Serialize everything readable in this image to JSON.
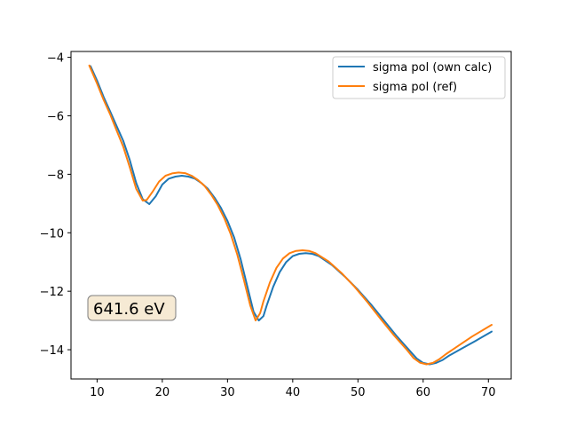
{
  "chart_data": {
    "type": "line",
    "title": "",
    "xlabel": "",
    "ylabel": "",
    "xlim": [
      6,
      73.5
    ],
    "ylim": [
      -15,
      -3.8
    ],
    "xticks": [
      10,
      20,
      30,
      40,
      50,
      60,
      70
    ],
    "yticks": [
      -14,
      -12,
      -10,
      -8,
      -6,
      -4
    ],
    "xtick_labels": [
      "10",
      "20",
      "30",
      "40",
      "50",
      "60",
      "70"
    ],
    "ytick_labels": [
      "−14",
      "−12",
      "−10",
      "−8",
      "−6",
      "−4"
    ],
    "grid": false,
    "legend_position": "top-right",
    "annotation": {
      "text": "641.6 eV",
      "position": "lower-left"
    },
    "series": [
      {
        "name": "sigma pol (own calc)",
        "color": "#1f77b4",
        "points": [
          [
            9,
            -4.3
          ],
          [
            10,
            -4.8
          ],
          [
            11,
            -5.35
          ],
          [
            12,
            -5.85
          ],
          [
            13,
            -6.35
          ],
          [
            14,
            -6.85
          ],
          [
            15,
            -7.5
          ],
          [
            16,
            -8.3
          ],
          [
            17,
            -8.85
          ],
          [
            18,
            -9.02
          ],
          [
            19,
            -8.75
          ],
          [
            20,
            -8.35
          ],
          [
            21,
            -8.15
          ],
          [
            22,
            -8.08
          ],
          [
            23,
            -8.05
          ],
          [
            24,
            -8.08
          ],
          [
            25,
            -8.15
          ],
          [
            26,
            -8.3
          ],
          [
            27,
            -8.5
          ],
          [
            28,
            -8.8
          ],
          [
            29,
            -9.15
          ],
          [
            30,
            -9.6
          ],
          [
            31,
            -10.15
          ],
          [
            32,
            -10.9
          ],
          [
            33,
            -11.8
          ],
          [
            34,
            -12.7
          ],
          [
            34.8,
            -13.0
          ],
          [
            35.5,
            -12.85
          ],
          [
            36,
            -12.5
          ],
          [
            37,
            -11.85
          ],
          [
            38,
            -11.35
          ],
          [
            39,
            -11.0
          ],
          [
            40,
            -10.8
          ],
          [
            41,
            -10.72
          ],
          [
            42,
            -10.7
          ],
          [
            43,
            -10.72
          ],
          [
            44,
            -10.8
          ],
          [
            46,
            -11.1
          ],
          [
            48,
            -11.5
          ],
          [
            50,
            -11.95
          ],
          [
            52,
            -12.45
          ],
          [
            54,
            -13.0
          ],
          [
            56,
            -13.55
          ],
          [
            58,
            -14.05
          ],
          [
            59,
            -14.3
          ],
          [
            60,
            -14.45
          ],
          [
            61,
            -14.5
          ],
          [
            62,
            -14.45
          ],
          [
            63,
            -14.35
          ],
          [
            64,
            -14.2
          ],
          [
            66,
            -13.95
          ],
          [
            68,
            -13.7
          ],
          [
            70.5,
            -13.38
          ]
        ]
      },
      {
        "name": "sigma pol (ref)",
        "color": "#ff7f0e",
        "points": [
          [
            8.8,
            -4.28
          ],
          [
            10,
            -4.9
          ],
          [
            11,
            -5.45
          ],
          [
            12,
            -5.95
          ],
          [
            13,
            -6.5
          ],
          [
            14,
            -7.05
          ],
          [
            15,
            -7.75
          ],
          [
            16,
            -8.5
          ],
          [
            17,
            -8.9
          ],
          [
            17.6,
            -8.88
          ],
          [
            18.5,
            -8.6
          ],
          [
            19.5,
            -8.25
          ],
          [
            20.5,
            -8.05
          ],
          [
            21.5,
            -7.97
          ],
          [
            22.5,
            -7.94
          ],
          [
            23.5,
            -7.96
          ],
          [
            24.5,
            -8.05
          ],
          [
            25.5,
            -8.2
          ],
          [
            26.5,
            -8.4
          ],
          [
            27.5,
            -8.7
          ],
          [
            28.5,
            -9.05
          ],
          [
            29.5,
            -9.5
          ],
          [
            30.5,
            -10.05
          ],
          [
            31.5,
            -10.75
          ],
          [
            32.5,
            -11.6
          ],
          [
            33.5,
            -12.5
          ],
          [
            34.3,
            -13.0
          ],
          [
            35,
            -12.75
          ],
          [
            35.5,
            -12.35
          ],
          [
            36.5,
            -11.7
          ],
          [
            37.5,
            -11.2
          ],
          [
            38.5,
            -10.88
          ],
          [
            39.5,
            -10.7
          ],
          [
            40.5,
            -10.62
          ],
          [
            41.5,
            -10.6
          ],
          [
            42.5,
            -10.62
          ],
          [
            43.5,
            -10.7
          ],
          [
            45.5,
            -10.98
          ],
          [
            47.5,
            -11.38
          ],
          [
            49.5,
            -11.85
          ],
          [
            51.5,
            -12.38
          ],
          [
            53.5,
            -12.95
          ],
          [
            55.5,
            -13.5
          ],
          [
            57.5,
            -14.0
          ],
          [
            58.5,
            -14.28
          ],
          [
            59.5,
            -14.44
          ],
          [
            60.5,
            -14.5
          ],
          [
            61.5,
            -14.45
          ],
          [
            62.5,
            -14.32
          ],
          [
            63.5,
            -14.15
          ],
          [
            65.5,
            -13.85
          ],
          [
            67.5,
            -13.55
          ],
          [
            70.5,
            -13.15
          ]
        ]
      }
    ]
  }
}
